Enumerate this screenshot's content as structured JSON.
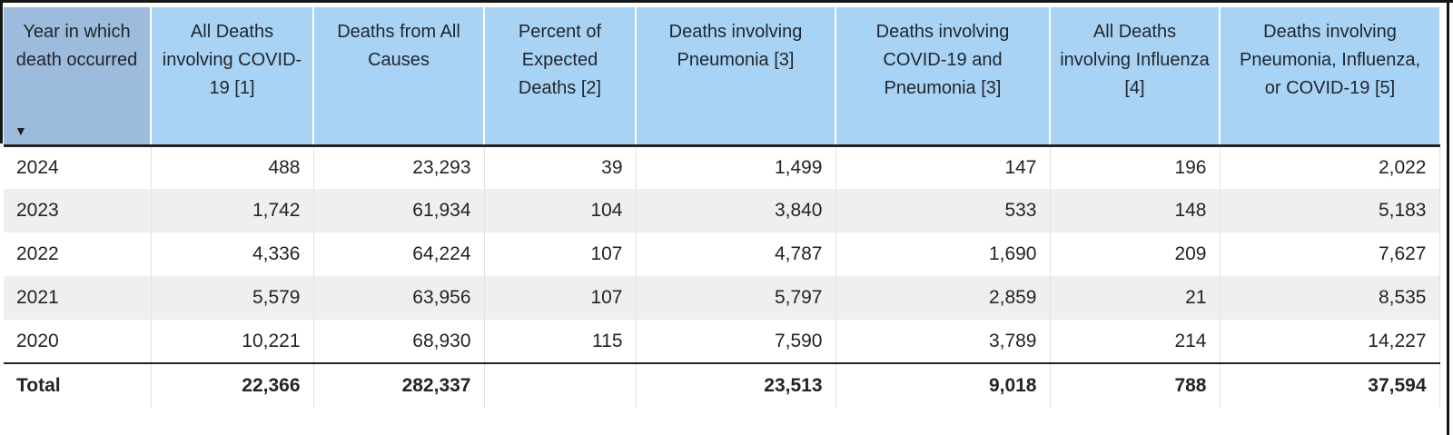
{
  "table": {
    "columns": [
      {
        "id": "year",
        "label": "Year in which death occurred"
      },
      {
        "id": "covid_deaths",
        "label": "All Deaths involving COVID-19 [1]"
      },
      {
        "id": "all_causes",
        "label": "Deaths from All Causes"
      },
      {
        "id": "pct_expected",
        "label": "Percent of Expected Deaths [2]"
      },
      {
        "id": "pneumonia",
        "label": "Deaths involving Pneumonia [3]"
      },
      {
        "id": "covid_pneumonia",
        "label": "Deaths involving COVID-19 and Pneumonia [3]"
      },
      {
        "id": "influenza",
        "label": "All Deaths involving Influenza [4]"
      },
      {
        "id": "pic",
        "label": "Deaths involving Pneumonia, Influenza, or COVID-19 [5]"
      }
    ],
    "sort": {
      "column": "year",
      "direction": "descending",
      "glyph": "▼"
    },
    "rows": [
      {
        "year": "2024",
        "values": [
          "488",
          "23,293",
          "39",
          "1,499",
          "147",
          "196",
          "2,022"
        ]
      },
      {
        "year": "2023",
        "values": [
          "1,742",
          "61,934",
          "104",
          "3,840",
          "533",
          "148",
          "5,183"
        ]
      },
      {
        "year": "2022",
        "values": [
          "4,336",
          "64,224",
          "107",
          "4,787",
          "1,690",
          "209",
          "7,627"
        ]
      },
      {
        "year": "2021",
        "values": [
          "5,579",
          "63,956",
          "107",
          "5,797",
          "2,859",
          "21",
          "8,535"
        ]
      },
      {
        "year": "2020",
        "values": [
          "10,221",
          "68,930",
          "115",
          "7,590",
          "3,789",
          "214",
          "14,227"
        ]
      }
    ],
    "total": {
      "label": "Total",
      "values": [
        "22,366",
        "282,337",
        "",
        "23,513",
        "9,018",
        "788",
        "37,594"
      ]
    }
  },
  "colors": {
    "header_background": "#a9d3f4",
    "year_header_background": "#9dbbdc",
    "alternate_row_background": "#efefef",
    "text": "#252423",
    "dark_border": "#232323",
    "cell_separator": "#e2e2e2"
  }
}
